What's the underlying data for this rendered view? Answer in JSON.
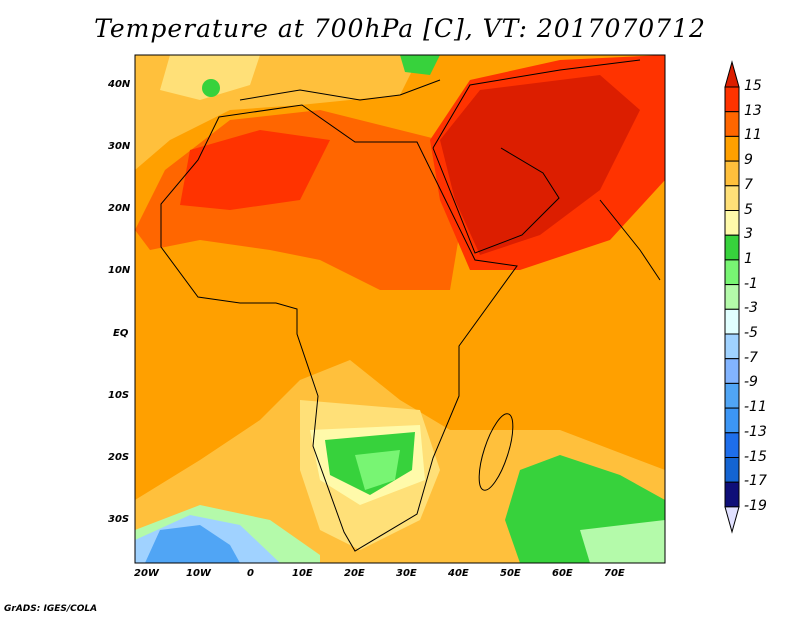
{
  "title": "Temperature at 700hPa [C], VT: 2017070712",
  "footer": "GrADS: IGES/COLA",
  "map": {
    "variable": "Temperature at 700hPa",
    "units": "C",
    "valid_time": "2017070712",
    "lat_labels": [
      "40N",
      "30N",
      "20N",
      "10N",
      "EQ",
      "10S",
      "20S",
      "30S"
    ],
    "lon_labels": [
      "20W",
      "10W",
      "0",
      "10E",
      "20E",
      "30E",
      "40E",
      "50E",
      "60E",
      "70E"
    ]
  },
  "colorbar": {
    "labels": [
      "15",
      "13",
      "11",
      "9",
      "7",
      "5",
      "3",
      "1",
      "-1",
      "-3",
      "-5",
      "-7",
      "-9",
      "-11",
      "-13",
      "-15",
      "-17",
      "-19"
    ],
    "over_color": "#dc1e00",
    "under_color": "#e1e1ff",
    "colors": [
      "#ff3300",
      "#ff6600",
      "#ffa000",
      "#ffc03c",
      "#ffe078",
      "#fffaaa",
      "#37d23c",
      "#78f573",
      "#b4faaa",
      "#e1ffff",
      "#a0d2ff",
      "#82b4ff",
      "#50a5f5",
      "#3c96f5",
      "#1e6eeb",
      "#1464d2",
      "#0f0f78"
    ]
  }
}
